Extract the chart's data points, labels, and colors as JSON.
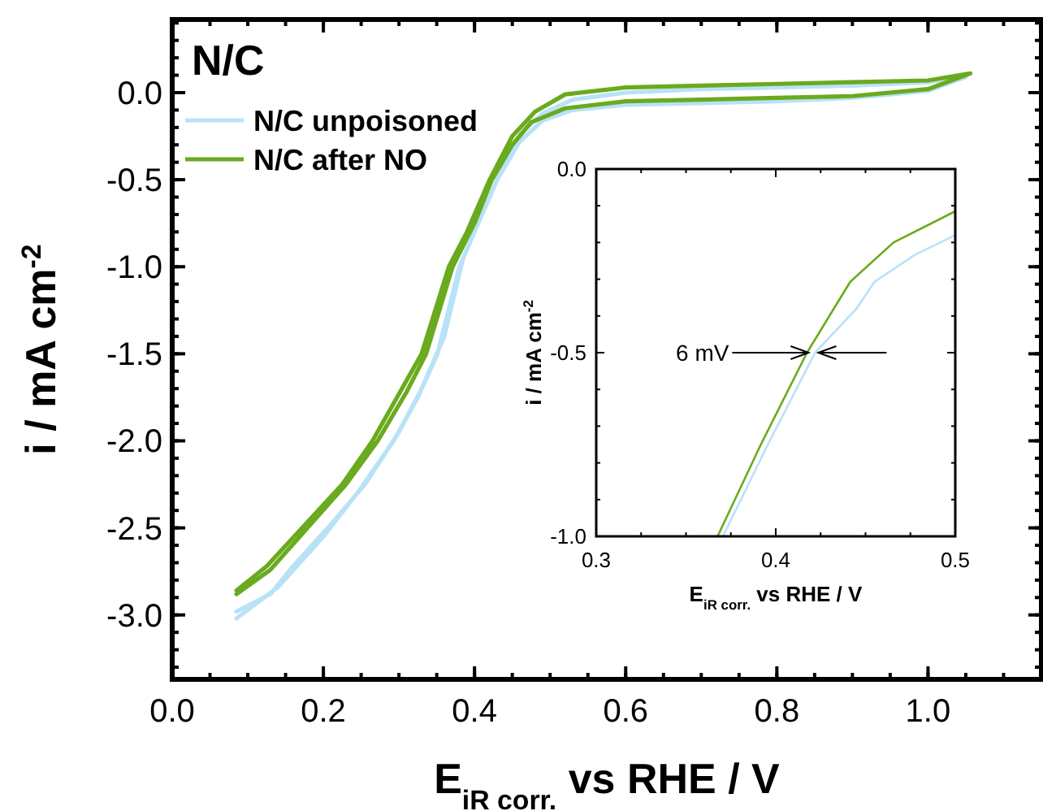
{
  "chart_data": [
    {
      "type": "line",
      "title": "N/C",
      "xlabel": "E$_{iR corr.}$ vs RHE / V",
      "ylabel": "i / mA cm$^{-2}$",
      "xlim": [
        0,
        1.15
      ],
      "ylim": [
        -3.37,
        0.42
      ],
      "xticks": [
        {
          "value": 0,
          "label": "0.0"
        },
        {
          "value": 0.2,
          "label": "0.2"
        },
        {
          "value": 0.4,
          "label": "0.4"
        },
        {
          "value": 0.6,
          "label": "0.6"
        },
        {
          "value": 0.8,
          "label": "0.8"
        },
        {
          "value": 1,
          "label": "1.0"
        }
      ],
      "yticks": [
        {
          "value": 0,
          "label": "0.0"
        },
        {
          "value": -0.5,
          "label": "-0.5"
        },
        {
          "value": -1,
          "label": "-1.0"
        },
        {
          "value": -1.5,
          "label": "-1.5"
        },
        {
          "value": -2,
          "label": "-2.0"
        },
        {
          "value": -2.5,
          "label": "-2.5"
        },
        {
          "value": -3,
          "label": "-3.0"
        }
      ],
      "grid": false,
      "legend": "top left",
      "marker": "none",
      "line_style": "solid",
      "series": [
        {
          "name": "N/C unpoisoned",
          "color": "#b8e2f8",
          "x": [
            0.085,
            0.14,
            0.2,
            0.25,
            0.293,
            0.325,
            0.351,
            0.38,
            0.405,
            0.43,
            0.46,
            0.49,
            0.53,
            0.6,
            0.7,
            0.8,
            0.9,
            1.0,
            1.05,
            1.0,
            0.9,
            0.8,
            0.7,
            0.6,
            0.53,
            0.49,
            0.46,
            0.435,
            0.41,
            0.385,
            0.36,
            0.33,
            0.3,
            0.255,
            0.21,
            0.16,
            0.13,
            0.085
          ],
          "values": [
            -3.02,
            -2.84,
            -2.55,
            -2.27,
            -2.0,
            -1.75,
            -1.5,
            -1.0,
            -0.75,
            -0.5,
            -0.28,
            -0.16,
            -0.1,
            -0.07,
            -0.06,
            -0.05,
            -0.03,
            0.01,
            0.09,
            0.06,
            0.04,
            0.03,
            0.02,
            0.0,
            -0.04,
            -0.12,
            -0.24,
            -0.45,
            -0.7,
            -0.95,
            -1.4,
            -1.7,
            -1.95,
            -2.25,
            -2.48,
            -2.72,
            -2.88,
            -2.98
          ]
        },
        {
          "name": "N/C after NO",
          "color": "#6aaa1e",
          "x": [
            0.085,
            0.13,
            0.179,
            0.23,
            0.272,
            0.31,
            0.336,
            0.371,
            0.4,
            0.423,
            0.45,
            0.475,
            0.52,
            0.6,
            0.7,
            0.8,
            0.9,
            1.0,
            1.056,
            1.0,
            0.9,
            0.8,
            0.7,
            0.6,
            0.52,
            0.48,
            0.45,
            0.42,
            0.39,
            0.366,
            0.33,
            0.265,
            0.225,
            0.172,
            0.125,
            0.085
          ],
          "values": [
            -2.88,
            -2.74,
            -2.5,
            -2.25,
            -2.0,
            -1.72,
            -1.5,
            -1.0,
            -0.75,
            -0.5,
            -0.3,
            -0.17,
            -0.09,
            -0.05,
            -0.04,
            -0.03,
            -0.02,
            0.02,
            0.11,
            0.07,
            0.06,
            0.05,
            0.04,
            0.03,
            -0.01,
            -0.11,
            -0.25,
            -0.5,
            -0.8,
            -1.0,
            -1.5,
            -2.0,
            -2.25,
            -2.5,
            -2.72,
            -2.86
          ]
        }
      ]
    },
    {
      "type": "line",
      "xlabel": "E$_{iR corr.}$ vs RHE / V",
      "ylabel": "i / mA cm$^{-2}$",
      "xlim": [
        0.3,
        0.5
      ],
      "ylim": [
        -1,
        0
      ],
      "xticks": [
        0.3,
        0.4,
        0.5
      ],
      "yticks": [
        {
          "value": 0,
          "label": "0.0"
        },
        -0.5,
        {
          "value": -1,
          "label": "-1.0"
        }
      ],
      "grid": false,
      "legend": false,
      "marker": "none",
      "line_style": "solid",
      "annotations": [
        {
          "text": "6 mV",
          "x": 0.421,
          "y": -0.5
        }
      ],
      "series": [
        {
          "color": "#b8e2f8",
          "x": [
            0.3706,
            0.3956,
            0.4219,
            0.445,
            0.455,
            0.4777,
            0.5
          ],
          "values": [
            -1.0,
            -0.75,
            -0.5,
            -0.38,
            -0.307,
            -0.233,
            -0.18
          ]
        },
        {
          "color": "#6aaa1e",
          "x": [
            0.3676,
            0.3917,
            0.4174,
            0.4415,
            0.4656,
            0.5
          ],
          "values": [
            -1.0,
            -0.75,
            -0.5,
            -0.307,
            -0.2,
            -0.115
          ]
        }
      ]
    }
  ]
}
